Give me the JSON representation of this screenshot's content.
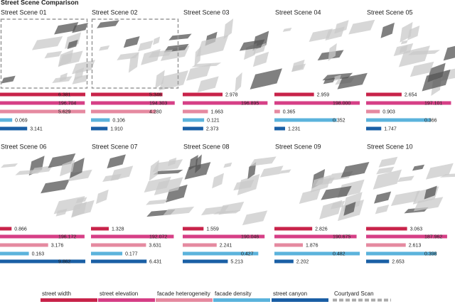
{
  "chart_data": {
    "type": "bar",
    "title": "Street Scene Comparison",
    "categories": [
      "Street Scene 01",
      "Street Scene 02",
      "Street Scene 03",
      "Street Scene 04",
      "Street Scene 05",
      "Street Scene 06",
      "Street Scene 07",
      "Street Scene 08",
      "Street Scene 09",
      "Street Scene 10"
    ],
    "series": [
      {
        "name": "street width",
        "color": "#c8234a",
        "values": [
          6.381,
          5.346,
          2.978,
          2.959,
          2.654,
          0.866,
          1.328,
          1.559,
          2.826,
          3.063
        ],
        "value_labels": [
          "6.381",
          "5.346",
          "2.978",
          "2.959",
          "2.654",
          "0.866",
          "1.328",
          "1.559",
          "2.826",
          "3.063"
        ]
      },
      {
        "name": "street elevation",
        "color": "#d63f86",
        "values": [
          196.704,
          194.303,
          196.895,
          198.0,
          197.101,
          196.172,
          192.072,
          190.046,
          190.675,
          187.962
        ],
        "value_labels": [
          "196.704",
          "194.303",
          "196.895",
          "198.000",
          "197.101",
          "196.172",
          "192.072",
          "190.046",
          "190.675",
          "187.962"
        ]
      },
      {
        "name": "facade heterogeneity",
        "color": "#e58aa0",
        "values": [
          5.629,
          4.28,
          1.663,
          0.365,
          0.903,
          3.176,
          3.631,
          2.241,
          1.876,
          2.613
        ],
        "value_labels": [
          "5.629",
          "4.280",
          "1.663",
          "0.365",
          "0.903",
          "3.176",
          "3.631",
          "2.241",
          "1.876",
          "2.613"
        ]
      },
      {
        "name": "facade density",
        "color": "#5bb3dc",
        "values": [
          0.069,
          0.106,
          0.121,
          0.352,
          0.366,
          0.163,
          0.177,
          0.427,
          0.482,
          0.398
        ],
        "value_labels": [
          "0.069",
          "0.106",
          "0.121",
          "0.352",
          "0.366",
          "0.163",
          "0.177",
          "0.427",
          "0.482",
          "0.398"
        ]
      },
      {
        "name": "street canyon",
        "color": "#1a5fa5",
        "values": [
          3.141,
          1.91,
          2.373,
          1.231,
          1.747,
          9.862,
          6.431,
          5.213,
          2.202,
          2.653
        ],
        "value_labels": [
          "3.141",
          "1.910",
          "2.373",
          "1.231",
          "1.747",
          "9.862",
          "6.431",
          "5.213",
          "2.202",
          "2.653"
        ]
      }
    ],
    "courtyard_scan": {
      "label": "Courtyard Scan",
      "scenes": [
        true,
        true,
        false,
        false,
        false,
        false,
        false,
        false,
        false,
        false
      ]
    }
  }
}
